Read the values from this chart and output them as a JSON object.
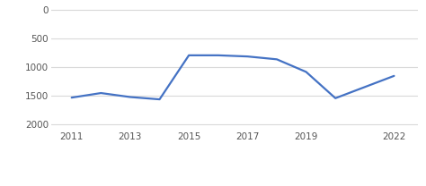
{
  "x": [
    2011,
    2012,
    2013,
    2014,
    2015,
    2016,
    2017,
    2018,
    2019,
    2020,
    2022
  ],
  "y": [
    1530,
    1450,
    1520,
    1560,
    790,
    790,
    810,
    860,
    1080,
    1540,
    1150
  ],
  "line_color": "#4472c4",
  "line_width": 1.6,
  "ylabel_ticks": [
    0,
    500,
    1000,
    1500,
    2000
  ],
  "xticks": [
    2011,
    2013,
    2015,
    2017,
    2019,
    2022
  ],
  "ylim": [
    2100,
    -80
  ],
  "xlim": [
    2010.3,
    2022.8
  ],
  "background_color": "#ffffff",
  "grid_color": "#d9d9d9",
  "tick_color": "#555555",
  "tick_fontsize": 7.5,
  "legend_fontsize": 7.5
}
